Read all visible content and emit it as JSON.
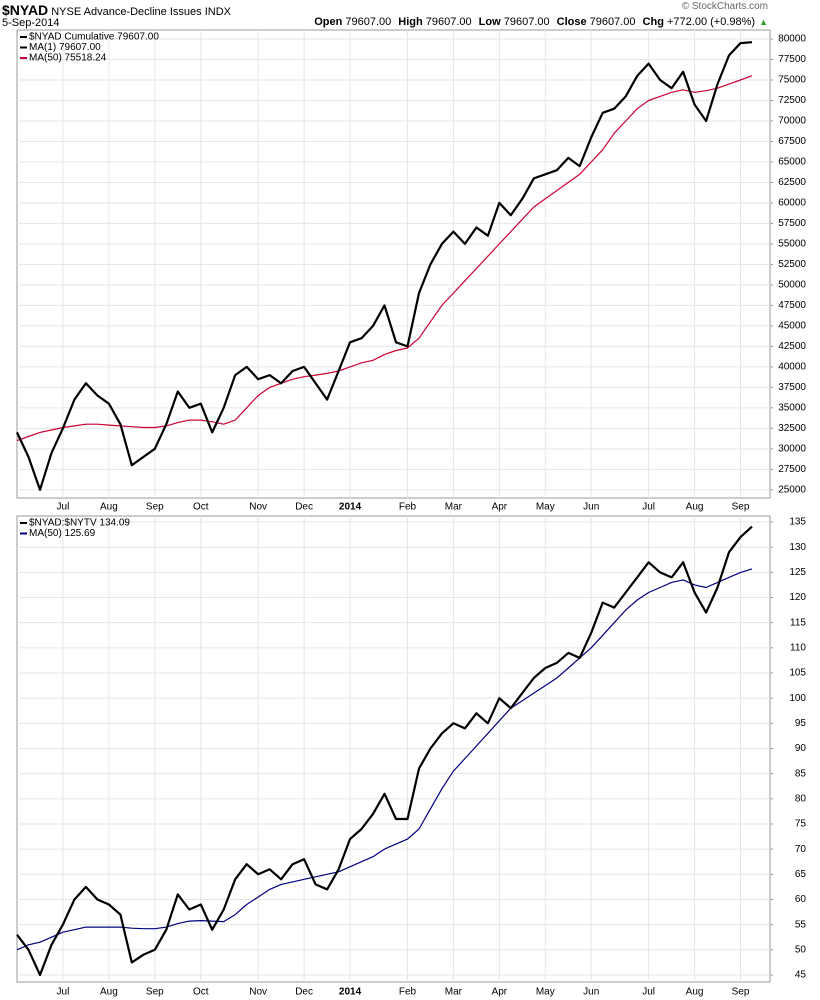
{
  "header": {
    "symbol": "$NYAD",
    "name": "NYSE Advance-Decline Issues INDX",
    "date": "5-Sep-2014",
    "credit": "© StockCharts.com",
    "quote": [
      {
        "label": "Open",
        "value": "79607.00"
      },
      {
        "label": "High",
        "value": "79607.00"
      },
      {
        "label": "Low",
        "value": "79607.00"
      },
      {
        "label": "Close",
        "value": "79607.00"
      },
      {
        "label": "Chg",
        "value": "+772.00 (+0.98%)"
      }
    ]
  },
  "chart_data": [
    {
      "type": "line",
      "categories": [
        null,
        null,
        null,
        null,
        "Jul",
        null,
        null,
        null,
        "Aug",
        null,
        null,
        null,
        "Sep",
        null,
        null,
        null,
        "Oct",
        null,
        null,
        null,
        null,
        "Nov",
        null,
        null,
        null,
        "Dec",
        null,
        null,
        null,
        "2014",
        null,
        null,
        null,
        null,
        "Feb",
        null,
        null,
        null,
        "Mar",
        null,
        null,
        null,
        "Apr",
        null,
        null,
        null,
        "May",
        null,
        null,
        null,
        "Jun",
        null,
        null,
        null,
        null,
        "Jul",
        null,
        null,
        null,
        "Aug",
        null,
        null,
        null,
        "Sep",
        null
      ],
      "series": [
        {
          "name": "$NYAD Cumulative 79607.00",
          "color": "#000000",
          "width": 2.2,
          "values": [
            32000,
            29000,
            25000,
            29500,
            32500,
            36000,
            38000,
            36500,
            35500,
            33000,
            28000,
            29000,
            30000,
            33000,
            37000,
            35000,
            35500,
            32000,
            35000,
            39000,
            40000,
            38500,
            39000,
            38000,
            39500,
            40000,
            38000,
            36000,
            39500,
            43000,
            43500,
            45000,
            47500,
            43000,
            42500,
            49000,
            52500,
            55000,
            56500,
            55000,
            57000,
            56000,
            60000,
            58500,
            60500,
            63000,
            63500,
            64000,
            65500,
            64500,
            68000,
            71000,
            71500,
            73000,
            75500,
            77000,
            75000,
            74000,
            76000,
            72000,
            70000,
            74500,
            78000,
            79500,
            79607
          ]
        },
        {
          "name": "MA(50) 75518.24",
          "color": "#cc0033",
          "width": 1.2,
          "values": [
            31000,
            31500,
            32000,
            32300,
            32600,
            32800,
            33000,
            33000,
            32900,
            32800,
            32700,
            32600,
            32600,
            32800,
            33200,
            33500,
            33500,
            33300,
            33000,
            33500,
            35000,
            36500,
            37500,
            38000,
            38500,
            38800,
            39000,
            39200,
            39500,
            40000,
            40500,
            40800,
            41500,
            42000,
            42300,
            43500,
            45500,
            47500,
            49000,
            50500,
            52000,
            53500,
            55000,
            56500,
            58000,
            59500,
            60500,
            61500,
            62500,
            63500,
            65000,
            66500,
            68500,
            70000,
            71500,
            72500,
            73000,
            73500,
            73800,
            73500,
            73700,
            74000,
            74500,
            75000,
            75518.24
          ]
        }
      ],
      "extra_legend": [
        {
          "label": "MA(1) 79607.00",
          "color": "#000000"
        }
      ],
      "ylim": [
        24000,
        81100
      ],
      "yticks": [
        25000,
        27500,
        30000,
        32500,
        35000,
        37500,
        40000,
        42500,
        45000,
        47500,
        50000,
        52500,
        55000,
        57500,
        60000,
        62500,
        65000,
        67500,
        70000,
        72500,
        75000,
        77500,
        80000
      ],
      "grid": true
    },
    {
      "type": "line",
      "categories": [
        null,
        null,
        null,
        null,
        "Jul",
        null,
        null,
        null,
        "Aug",
        null,
        null,
        null,
        "Sep",
        null,
        null,
        null,
        "Oct",
        null,
        null,
        null,
        null,
        "Nov",
        null,
        null,
        null,
        "Dec",
        null,
        null,
        null,
        "2014",
        null,
        null,
        null,
        null,
        "Feb",
        null,
        null,
        null,
        "Mar",
        null,
        null,
        null,
        "Apr",
        null,
        null,
        null,
        "May",
        null,
        null,
        null,
        "Jun",
        null,
        null,
        null,
        null,
        "Jul",
        null,
        null,
        null,
        "Aug",
        null,
        null,
        null,
        "Sep",
        null
      ],
      "series": [
        {
          "name": "$NYAD:$NYTV 134.09",
          "color": "#000000",
          "width": 2.2,
          "values": [
            53,
            50,
            45,
            51,
            55,
            60,
            62.5,
            60,
            59,
            57,
            47.5,
            49,
            50,
            54,
            61,
            58,
            59,
            54,
            58,
            64,
            67,
            65,
            66,
            64,
            67,
            68,
            63,
            62,
            66,
            72,
            74,
            77,
            81,
            76,
            76,
            86,
            90,
            93,
            95,
            94,
            97,
            95,
            100,
            98,
            101,
            104,
            106,
            107,
            109,
            108,
            113,
            119,
            118,
            121,
            124,
            127,
            125,
            124,
            127,
            121,
            117,
            122,
            129,
            132,
            134.09
          ]
        },
        {
          "name": "MA(50) 125.69",
          "color": "#000080",
          "width": 1.2,
          "values": [
            50,
            51,
            51.5,
            52.5,
            53.5,
            54,
            54.5,
            54.5,
            54.5,
            54.5,
            54.3,
            54.2,
            54.2,
            54.5,
            55.2,
            55.7,
            55.8,
            55.7,
            55.6,
            57,
            59,
            60.5,
            62,
            63,
            63.5,
            64,
            64.5,
            65,
            65.5,
            66.5,
            67.5,
            68.5,
            70,
            71,
            72,
            74,
            78,
            82,
            85.5,
            88,
            90.5,
            93,
            95.5,
            98,
            99.5,
            101,
            102.5,
            104,
            106,
            108,
            110,
            112.5,
            115,
            117.5,
            119.5,
            121,
            122,
            123,
            123.5,
            122.5,
            122,
            123,
            124,
            125,
            125.69
          ]
        }
      ],
      "ylim": [
        43.6,
        136.2
      ],
      "yticks": [
        45,
        50,
        55,
        60,
        65,
        70,
        75,
        80,
        85,
        90,
        95,
        100,
        105,
        110,
        115,
        120,
        125,
        130,
        135
      ],
      "grid": true
    }
  ]
}
